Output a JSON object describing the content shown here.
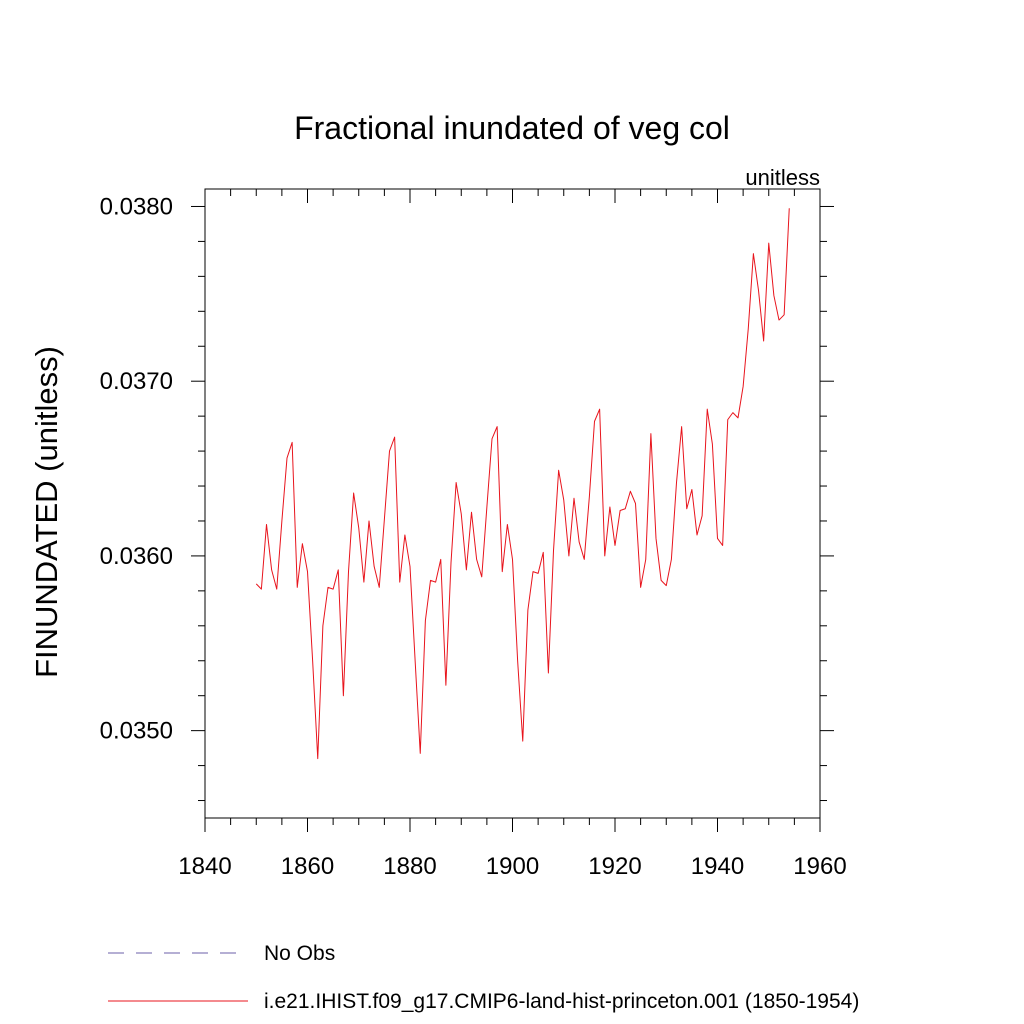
{
  "chart_data": {
    "type": "line",
    "title": "Fractional inundated of veg col",
    "units_label": "unitless",
    "ylabel": "FINUNDATED  (unitless)",
    "xlabel": "",
    "xlim": [
      1840,
      1960
    ],
    "ylim": [
      0.0345,
      0.0381
    ],
    "xticks": [
      1840,
      1860,
      1880,
      1900,
      1920,
      1940,
      1960
    ],
    "yticks": [
      0.035,
      0.036,
      0.037,
      0.038
    ],
    "ytick_labels": [
      "0.0350",
      "0.0360",
      "0.0370",
      "0.0380"
    ],
    "grid": false,
    "legend_position": "bottom",
    "series": [
      {
        "name": "No Obs",
        "color": "#6b5fa8",
        "dashed": true,
        "x": [],
        "y": []
      },
      {
        "name": "i.e21.IHIST.f09_g17.CMIP6-land-hist-princeton.001 (1850-1954)",
        "color": "#e8141c",
        "dashed": false,
        "x": [
          1850,
          1851,
          1852,
          1853,
          1854,
          1855,
          1856,
          1857,
          1858,
          1859,
          1860,
          1861,
          1862,
          1863,
          1864,
          1865,
          1866,
          1867,
          1868,
          1869,
          1870,
          1871,
          1872,
          1873,
          1874,
          1875,
          1876,
          1877,
          1878,
          1879,
          1880,
          1881,
          1882,
          1883,
          1884,
          1885,
          1886,
          1887,
          1888,
          1889,
          1890,
          1891,
          1892,
          1893,
          1894,
          1895,
          1896,
          1897,
          1898,
          1899,
          1900,
          1901,
          1902,
          1903,
          1904,
          1905,
          1906,
          1907,
          1908,
          1909,
          1910,
          1911,
          1912,
          1913,
          1914,
          1915,
          1916,
          1917,
          1918,
          1919,
          1920,
          1921,
          1922,
          1923,
          1924,
          1925,
          1926,
          1927,
          1928,
          1929,
          1930,
          1931,
          1932,
          1933,
          1934,
          1935,
          1936,
          1937,
          1938,
          1939,
          1940,
          1941,
          1942,
          1943,
          1944,
          1945,
          1946,
          1947,
          1948,
          1949,
          1950,
          1951,
          1952,
          1953,
          1954
        ],
        "y": [
          0.03584,
          0.03581,
          0.03618,
          0.03592,
          0.03581,
          0.0362,
          0.03656,
          0.03665,
          0.03582,
          0.03607,
          0.03591,
          0.0354,
          0.03484,
          0.0356,
          0.03582,
          0.03581,
          0.03592,
          0.0352,
          0.03591,
          0.03636,
          0.03616,
          0.03585,
          0.0362,
          0.03594,
          0.03582,
          0.03621,
          0.0366,
          0.03668,
          0.03585,
          0.03612,
          0.03594,
          0.0354,
          0.03487,
          0.03563,
          0.03586,
          0.03585,
          0.03598,
          0.03526,
          0.03596,
          0.03642,
          0.03624,
          0.03592,
          0.03625,
          0.03598,
          0.03588,
          0.03628,
          0.03667,
          0.03674,
          0.03591,
          0.03618,
          0.03598,
          0.0354,
          0.03494,
          0.03569,
          0.03591,
          0.0359,
          0.03602,
          0.03533,
          0.03603,
          0.03649,
          0.03632,
          0.036,
          0.03633,
          0.03608,
          0.03598,
          0.03634,
          0.03677,
          0.03684,
          0.036,
          0.03628,
          0.03606,
          0.03626,
          0.03627,
          0.03637,
          0.0363,
          0.03582,
          0.03598,
          0.0367,
          0.0361,
          0.03586,
          0.03583,
          0.03598,
          0.03642,
          0.03674,
          0.03627,
          0.03638,
          0.03612,
          0.03623,
          0.03684,
          0.03664,
          0.0361,
          0.03606,
          0.03678,
          0.03682,
          0.03679,
          0.03697,
          0.0373,
          0.03773,
          0.03752,
          0.03723,
          0.03779,
          0.03749,
          0.03735,
          0.03738,
          0.03799
        ]
      }
    ]
  }
}
